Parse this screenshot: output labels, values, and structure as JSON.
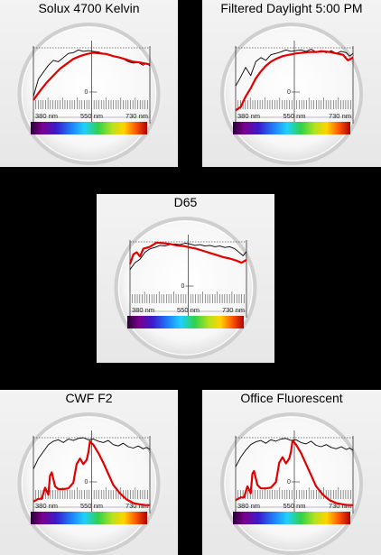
{
  "colors": {
    "measured": "#e00000",
    "reference": "#000000",
    "background": "#000000"
  },
  "chart_data": [
    {
      "type": "line",
      "title": "Solux 4700 Kelvin",
      "x_tick_labels": [
        "380 nm",
        "550 nm",
        "730 nm"
      ],
      "zero_label": "0",
      "xlim": [
        380,
        730
      ],
      "ylim": [
        0,
        1
      ],
      "series": [
        {
          "color": "#000000",
          "x": [
            380,
            395,
            410,
            425,
            440,
            455,
            470,
            485,
            500,
            515,
            530,
            545,
            560,
            575,
            590,
            605,
            620,
            635,
            650,
            665,
            680,
            695,
            710,
            720,
            730
          ],
          "y": [
            0.3,
            0.55,
            0.65,
            0.75,
            0.82,
            0.8,
            0.86,
            0.92,
            0.93,
            0.97,
            0.95,
            0.96,
            0.95,
            0.94,
            0.92,
            0.9,
            0.88,
            0.86,
            0.84,
            0.8,
            0.78,
            0.79,
            0.75,
            0.78,
            0.74
          ]
        },
        {
          "color": "#e00000",
          "x": [
            380,
            400,
            420,
            440,
            460,
            480,
            500,
            520,
            540,
            560,
            580,
            600,
            620,
            640,
            660,
            680,
            700,
            720,
            730
          ],
          "y": [
            0.25,
            0.38,
            0.5,
            0.6,
            0.7,
            0.77,
            0.84,
            0.88,
            0.91,
            0.93,
            0.92,
            0.91,
            0.88,
            0.86,
            0.83,
            0.8,
            0.79,
            0.77,
            0.76
          ]
        }
      ]
    },
    {
      "type": "line",
      "title": "Filtered Daylight 5:00 PM",
      "x_tick_labels": [
        "380 nm",
        "550 nm",
        "730 nm"
      ],
      "zero_label": "0",
      "xlim": [
        380,
        730
      ],
      "ylim": [
        0,
        1
      ],
      "series": [
        {
          "color": "#000000",
          "x": [
            380,
            395,
            410,
            425,
            440,
            455,
            470,
            485,
            500,
            515,
            530,
            545,
            560,
            575,
            590,
            605,
            620,
            635,
            650,
            665,
            680,
            695,
            710,
            720,
            730
          ],
          "y": [
            0.45,
            0.58,
            0.72,
            0.6,
            0.8,
            0.86,
            0.82,
            0.9,
            0.92,
            0.94,
            0.97,
            0.95,
            0.96,
            0.97,
            0.95,
            0.98,
            0.94,
            0.96,
            0.93,
            0.96,
            0.92,
            0.95,
            0.93,
            0.88,
            0.92
          ]
        },
        {
          "color": "#e00000",
          "x": [
            380,
            395,
            410,
            425,
            440,
            455,
            470,
            485,
            500,
            520,
            540,
            560,
            580,
            600,
            620,
            640,
            660,
            680,
            700,
            715,
            730
          ],
          "y": [
            0.1,
            0.15,
            0.3,
            0.42,
            0.56,
            0.66,
            0.74,
            0.8,
            0.84,
            0.88,
            0.9,
            0.92,
            0.93,
            0.94,
            0.94,
            0.95,
            0.94,
            0.92,
            0.9,
            0.82,
            0.86
          ]
        }
      ]
    },
    {
      "type": "line",
      "title": "D65",
      "x_tick_labels": [
        "380 nm",
        "550 nm",
        "730 nm"
      ],
      "zero_label": "0",
      "xlim": [
        380,
        730
      ],
      "ylim": [
        0,
        1
      ],
      "series": [
        {
          "color": "#000000",
          "x": [
            380,
            395,
            410,
            425,
            440,
            455,
            470,
            485,
            500,
            515,
            530,
            545,
            560,
            575,
            590,
            605,
            620,
            635,
            650,
            665,
            680,
            695,
            710,
            720,
            730
          ],
          "y": [
            0.6,
            0.7,
            0.75,
            0.85,
            0.9,
            0.92,
            0.95,
            0.94,
            0.96,
            0.97,
            0.96,
            0.98,
            0.97,
            0.95,
            0.96,
            0.94,
            0.95,
            0.93,
            0.94,
            0.92,
            0.93,
            0.9,
            0.84,
            0.8,
            0.86
          ]
        },
        {
          "color": "#e00000",
          "x": [
            380,
            390,
            400,
            410,
            420,
            440,
            460,
            480,
            500,
            520,
            540,
            560,
            580,
            600,
            620,
            640,
            660,
            680,
            700,
            715,
            730
          ],
          "y": [
            0.68,
            0.82,
            0.85,
            0.79,
            0.9,
            0.93,
            0.99,
            0.98,
            0.97,
            0.95,
            0.94,
            0.92,
            0.9,
            0.87,
            0.84,
            0.81,
            0.78,
            0.76,
            0.73,
            0.7,
            0.74
          ]
        }
      ]
    },
    {
      "type": "line",
      "title": "CWF F2",
      "x_tick_labels": [
        "380 nm",
        "550 nm",
        "730 nm"
      ],
      "zero_label": "0",
      "xlim": [
        380,
        730
      ],
      "ylim": [
        0,
        1
      ],
      "series": [
        {
          "color": "#000000",
          "x": [
            380,
            395,
            410,
            425,
            440,
            455,
            470,
            485,
            500,
            515,
            530,
            545,
            560,
            575,
            590,
            605,
            620,
            635,
            650,
            665,
            680,
            695,
            710,
            720,
            730
          ],
          "y": [
            0.55,
            0.7,
            0.8,
            0.9,
            0.95,
            0.97,
            0.93,
            0.98,
            0.96,
            0.99,
            1.0,
            0.97,
            0.98,
            0.95,
            0.93,
            0.96,
            0.9,
            0.88,
            0.92,
            0.87,
            0.85,
            0.88,
            0.84,
            0.86,
            0.83
          ]
        },
        {
          "color": "#e00000",
          "x": [
            380,
            395,
            405,
            415,
            425,
            430,
            435,
            445,
            455,
            470,
            485,
            500,
            510,
            520,
            530,
            540,
            545,
            550,
            555,
            560,
            575,
            590,
            605,
            620,
            640,
            660,
            680,
            700,
            715,
            730
          ],
          "y": [
            0.08,
            0.12,
            0.12,
            0.28,
            0.18,
            0.45,
            0.5,
            0.3,
            0.26,
            0.26,
            0.27,
            0.35,
            0.62,
            0.7,
            0.62,
            0.68,
            0.78,
            0.95,
            0.92,
            0.9,
            0.78,
            0.64,
            0.48,
            0.32,
            0.2,
            0.11,
            0.06,
            0.04,
            0.03,
            0.03
          ]
        }
      ]
    },
    {
      "type": "line",
      "title": "Office Fluorescent",
      "x_tick_labels": [
        "380 nm",
        "550 nm",
        "730 nm"
      ],
      "zero_label": "0",
      "xlim": [
        380,
        730
      ],
      "ylim": [
        0,
        1
      ],
      "series": [
        {
          "color": "#000000",
          "x": [
            380,
            395,
            410,
            425,
            440,
            455,
            470,
            485,
            500,
            515,
            530,
            545,
            560,
            575,
            590,
            605,
            620,
            635,
            650,
            665,
            680,
            695,
            710,
            720,
            730
          ],
          "y": [
            0.58,
            0.72,
            0.82,
            0.9,
            0.94,
            0.96,
            0.92,
            0.97,
            0.95,
            0.98,
            0.99,
            0.96,
            0.97,
            0.93,
            0.91,
            0.95,
            0.89,
            0.87,
            0.9,
            0.86,
            0.84,
            0.87,
            0.83,
            0.85,
            0.82
          ]
        },
        {
          "color": "#e00000",
          "x": [
            380,
            395,
            405,
            415,
            425,
            430,
            435,
            445,
            455,
            470,
            485,
            500,
            510,
            520,
            530,
            540,
            545,
            550,
            555,
            560,
            575,
            590,
            605,
            620,
            640,
            660,
            680,
            700,
            715,
            730
          ],
          "y": [
            0.1,
            0.14,
            0.14,
            0.3,
            0.2,
            0.48,
            0.52,
            0.32,
            0.27,
            0.27,
            0.28,
            0.36,
            0.64,
            0.72,
            0.63,
            0.7,
            0.8,
            0.96,
            0.93,
            0.9,
            0.78,
            0.62,
            0.46,
            0.3,
            0.18,
            0.1,
            0.06,
            0.04,
            0.03,
            0.03
          ]
        }
      ]
    }
  ]
}
